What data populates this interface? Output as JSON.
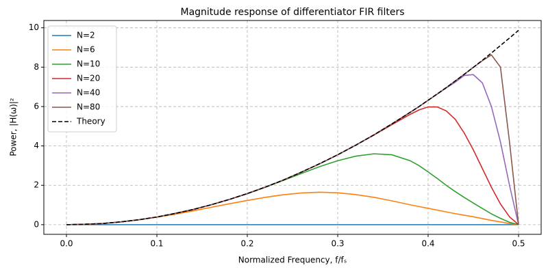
{
  "chart_data": {
    "type": "line",
    "title": "Magnitude response of differentiator FIR filters",
    "xlabel": "Normalized Frequency, f/fₛ",
    "ylabel": "Power, |H(ω)|²",
    "x": [
      0,
      0.02,
      0.04,
      0.06,
      0.08,
      0.1,
      0.12,
      0.14,
      0.16,
      0.18,
      0.2,
      0.22,
      0.24,
      0.26,
      0.28,
      0.3,
      0.32,
      0.34,
      0.36,
      0.38,
      0.39,
      0.4,
      0.41,
      0.42,
      0.43,
      0.44,
      0.45,
      0.46,
      0.47,
      0.48,
      0.49,
      0.5
    ],
    "series": [
      {
        "name": "N=2",
        "color": "#1f77b4",
        "linestyle": "solid",
        "values": [
          0,
          0,
          0,
          0,
          0,
          0,
          0,
          0,
          0,
          0,
          0,
          0,
          0,
          0,
          0,
          0,
          0,
          0,
          0,
          0,
          0,
          0,
          0,
          0,
          0,
          0,
          0,
          0,
          0,
          0,
          0,
          0
        ]
      },
      {
        "name": "N=6",
        "color": "#ff7f0e",
        "linestyle": "solid",
        "values": [
          0,
          0.02,
          0.06,
          0.14,
          0.25,
          0.38,
          0.53,
          0.7,
          0.88,
          1.06,
          1.23,
          1.39,
          1.52,
          1.61,
          1.65,
          1.62,
          1.53,
          1.39,
          1.21,
          1.01,
          0.92,
          0.83,
          0.74,
          0.65,
          0.56,
          0.48,
          0.4,
          0.31,
          0.22,
          0.14,
          0.06,
          0
        ]
      },
      {
        "name": "N=10",
        "color": "#2ca02c",
        "linestyle": "solid",
        "values": [
          0,
          0.02,
          0.06,
          0.14,
          0.25,
          0.39,
          0.57,
          0.77,
          1.01,
          1.28,
          1.57,
          1.9,
          2.25,
          2.6,
          2.95,
          3.25,
          3.48,
          3.6,
          3.55,
          3.25,
          3.0,
          2.68,
          2.35,
          2.0,
          1.68,
          1.38,
          1.1,
          0.82,
          0.55,
          0.32,
          0.12,
          0
        ]
      },
      {
        "name": "N=20",
        "color": "#d62728",
        "linestyle": "solid",
        "values": [
          0,
          0.02,
          0.06,
          0.14,
          0.25,
          0.39,
          0.57,
          0.77,
          1.01,
          1.28,
          1.58,
          1.91,
          2.27,
          2.67,
          3.09,
          3.55,
          4.04,
          4.55,
          5.08,
          5.6,
          5.83,
          5.98,
          5.98,
          5.78,
          5.35,
          4.65,
          3.8,
          2.85,
          1.9,
          1.05,
          0.4,
          0
        ]
      },
      {
        "name": "N=40",
        "color": "#9467bd",
        "linestyle": "solid",
        "values": [
          0,
          0.02,
          0.06,
          0.14,
          0.25,
          0.39,
          0.57,
          0.77,
          1.01,
          1.28,
          1.58,
          1.91,
          2.27,
          2.67,
          3.09,
          3.55,
          4.04,
          4.56,
          5.12,
          5.7,
          6.0,
          6.31,
          6.63,
          6.94,
          7.24,
          7.58,
          7.62,
          7.2,
          6.0,
          4.2,
          2.0,
          0
        ]
      },
      {
        "name": "N=80",
        "color": "#8c564b",
        "linestyle": "solid",
        "values": [
          0,
          0.02,
          0.06,
          0.14,
          0.25,
          0.39,
          0.57,
          0.77,
          1.01,
          1.28,
          1.58,
          1.91,
          2.27,
          2.67,
          3.09,
          3.55,
          4.04,
          4.56,
          5.12,
          5.7,
          6.0,
          6.32,
          6.63,
          6.96,
          7.3,
          7.64,
          7.99,
          8.33,
          8.62,
          8.0,
          4.2,
          0
        ]
      },
      {
        "name": "Theory",
        "color": "#000000",
        "linestyle": "dashed",
        "values": [
          0,
          0.02,
          0.06,
          0.14,
          0.25,
          0.39,
          0.57,
          0.77,
          1.01,
          1.28,
          1.58,
          1.91,
          2.27,
          2.67,
          3.1,
          3.55,
          4.04,
          4.56,
          5.12,
          5.7,
          6.0,
          6.32,
          6.64,
          6.96,
          7.3,
          7.64,
          7.99,
          8.35,
          8.72,
          9.1,
          9.48,
          9.87
        ]
      }
    ],
    "xlim": [
      -0.025,
      0.525
    ],
    "ylim": [
      -0.49,
      10.37
    ],
    "xticks": [
      {
        "value": 0,
        "label": "0.0"
      },
      {
        "value": 0.1,
        "label": "0.1"
      },
      {
        "value": 0.2,
        "label": "0.2"
      },
      {
        "value": 0.3,
        "label": "0.3"
      },
      {
        "value": 0.4,
        "label": "0.4"
      },
      {
        "value": 0.5,
        "label": "0.5"
      }
    ],
    "yticks": [
      0,
      2,
      4,
      6,
      8,
      10
    ],
    "grid": true,
    "legend": "upper-left"
  }
}
